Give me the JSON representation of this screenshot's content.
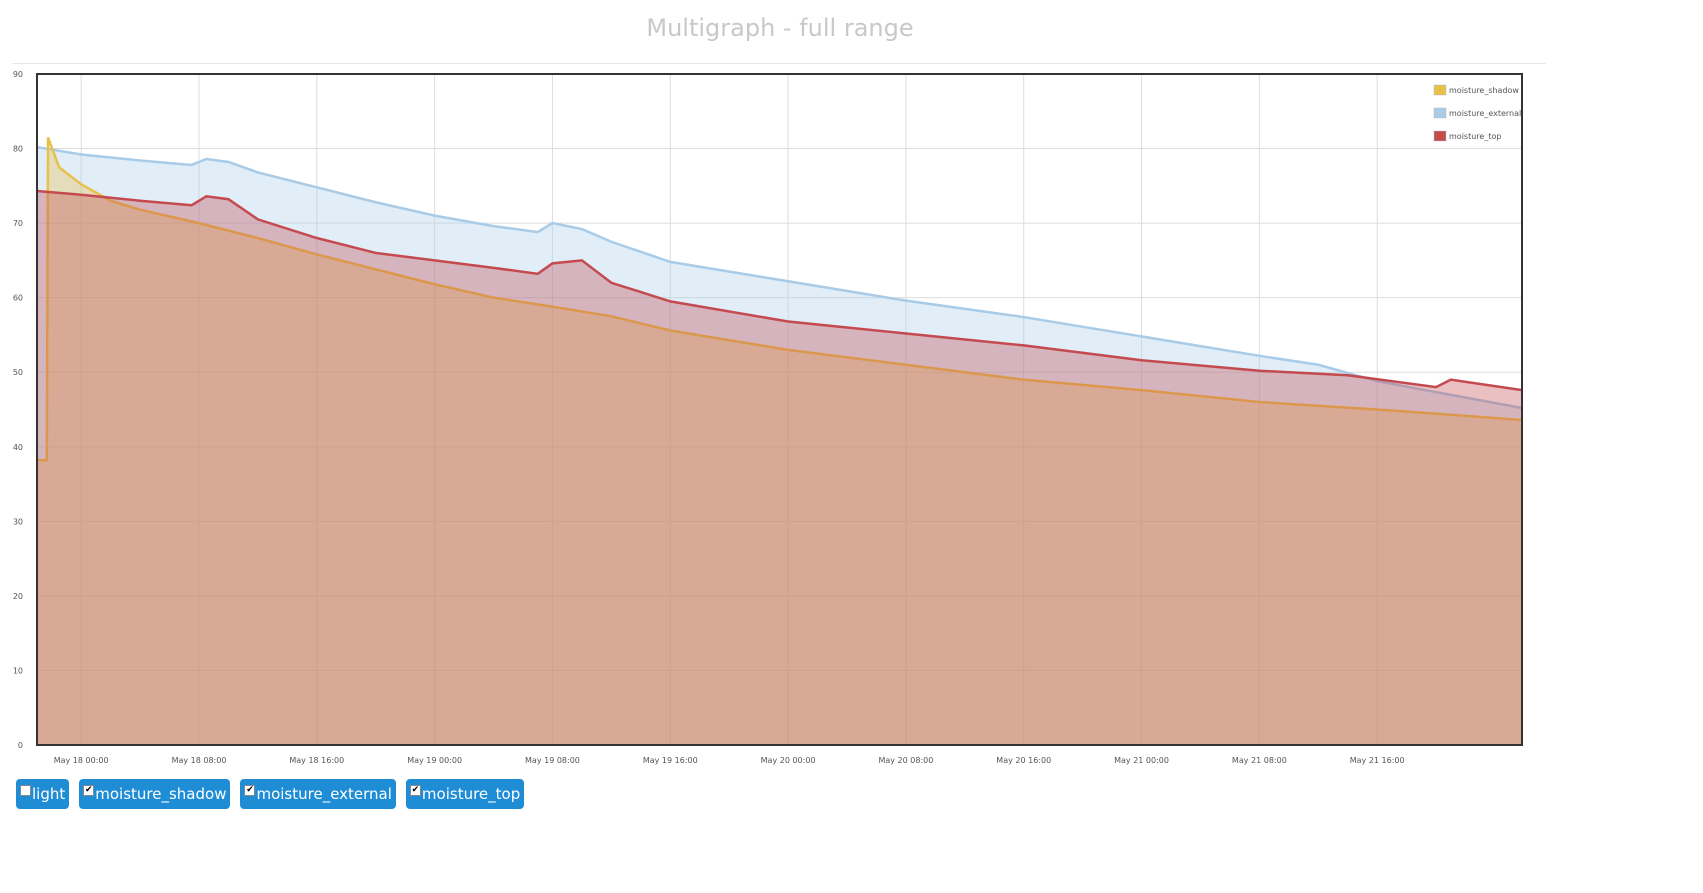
{
  "title": "Multigraph - full range",
  "chart_data": {
    "type": "area",
    "title": "Multigraph - full range",
    "xlabel": "",
    "ylabel": "",
    "ylim": [
      0,
      90
    ],
    "yticks": [
      0,
      10,
      20,
      30,
      40,
      50,
      60,
      70,
      80,
      90
    ],
    "xlim": [
      "2018-05-17 21:00",
      "2018-05-22 01:50"
    ],
    "xticks": [
      "May 18 00:00",
      "May 18 08:00",
      "May 18 16:00",
      "May 19 00:00",
      "May 19 08:00",
      "May 19 16:00",
      "May 20 00:00",
      "May 20 08:00",
      "May 20 16:00",
      "May 21 00:00",
      "May 21 08:00",
      "May 21 16:00"
    ],
    "grid": true,
    "legend": "top-right",
    "series": [
      {
        "name": "moisture_shadow",
        "color": "#e8c14a",
        "points": [
          [
            "2018-05-17 21:00",
            38.2
          ],
          [
            "2018-05-17 21:40",
            38.2
          ],
          [
            "2018-05-17 21:45",
            81.5
          ],
          [
            "2018-05-17 22:30",
            77.5
          ],
          [
            "2018-05-18 00:00",
            75.2
          ],
          [
            "2018-05-18 02:00",
            73.0
          ],
          [
            "2018-05-18 04:00",
            71.8
          ],
          [
            "2018-05-18 08:00",
            70.0
          ],
          [
            "2018-05-18 12:00",
            68.0
          ],
          [
            "2018-05-18 16:00",
            65.8
          ],
          [
            "2018-05-18 20:00",
            63.8
          ],
          [
            "2018-05-19 00:00",
            61.8
          ],
          [
            "2018-05-19 04:00",
            60.0
          ],
          [
            "2018-05-19 08:00",
            58.8
          ],
          [
            "2018-05-19 12:00",
            57.5
          ],
          [
            "2018-05-19 16:00",
            55.6
          ],
          [
            "2018-05-20 00:00",
            53.0
          ],
          [
            "2018-05-20 08:00",
            51.0
          ],
          [
            "2018-05-20 16:00",
            49.0
          ],
          [
            "2018-05-21 00:00",
            47.6
          ],
          [
            "2018-05-21 08:00",
            46.0
          ],
          [
            "2018-05-21 16:00",
            45.0
          ],
          [
            "2018-05-22 01:50",
            43.6
          ]
        ]
      },
      {
        "name": "moisture_external",
        "color": "#a8cbe8",
        "points": [
          [
            "2018-05-17 21:00",
            80.2
          ],
          [
            "2018-05-18 00:00",
            79.2
          ],
          [
            "2018-05-18 04:00",
            78.4
          ],
          [
            "2018-05-18 07:30",
            77.8
          ],
          [
            "2018-05-18 08:30",
            78.6
          ],
          [
            "2018-05-18 10:00",
            78.2
          ],
          [
            "2018-05-18 12:00",
            76.8
          ],
          [
            "2018-05-18 16:00",
            74.8
          ],
          [
            "2018-05-18 20:00",
            72.8
          ],
          [
            "2018-05-19 00:00",
            71.0
          ],
          [
            "2018-05-19 04:00",
            69.6
          ],
          [
            "2018-05-19 07:00",
            68.8
          ],
          [
            "2018-05-19 08:00",
            70.0
          ],
          [
            "2018-05-19 10:00",
            69.2
          ],
          [
            "2018-05-19 12:00",
            67.5
          ],
          [
            "2018-05-19 16:00",
            64.8
          ],
          [
            "2018-05-20 00:00",
            62.2
          ],
          [
            "2018-05-20 08:00",
            59.6
          ],
          [
            "2018-05-20 16:00",
            57.4
          ],
          [
            "2018-05-21 00:00",
            54.8
          ],
          [
            "2018-05-21 08:00",
            52.2
          ],
          [
            "2018-05-21 12:00",
            51.0
          ],
          [
            "2018-05-21 16:00",
            48.8
          ],
          [
            "2018-05-22 01:50",
            45.2
          ]
        ]
      },
      {
        "name": "moisture_top",
        "color": "#c44a4f",
        "points": [
          [
            "2018-05-17 21:00",
            74.3
          ],
          [
            "2018-05-18 00:00",
            73.8
          ],
          [
            "2018-05-18 04:00",
            73.0
          ],
          [
            "2018-05-18 07:30",
            72.4
          ],
          [
            "2018-05-18 08:30",
            73.6
          ],
          [
            "2018-05-18 10:00",
            73.2
          ],
          [
            "2018-05-18 12:00",
            70.5
          ],
          [
            "2018-05-18 16:00",
            68.0
          ],
          [
            "2018-05-18 20:00",
            66.0
          ],
          [
            "2018-05-19 00:00",
            65.0
          ],
          [
            "2018-05-19 04:00",
            64.0
          ],
          [
            "2018-05-19 07:00",
            63.2
          ],
          [
            "2018-05-19 08:00",
            64.6
          ],
          [
            "2018-05-19 10:00",
            65.0
          ],
          [
            "2018-05-19 12:00",
            62.0
          ],
          [
            "2018-05-19 16:00",
            59.5
          ],
          [
            "2018-05-20 00:00",
            56.8
          ],
          [
            "2018-05-20 08:00",
            55.2
          ],
          [
            "2018-05-20 16:00",
            53.6
          ],
          [
            "2018-05-21 00:00",
            51.6
          ],
          [
            "2018-05-21 08:00",
            50.2
          ],
          [
            "2018-05-21 14:00",
            49.6
          ],
          [
            "2018-05-21 20:00",
            48.0
          ],
          [
            "2018-05-21 21:00",
            49.0
          ],
          [
            "2018-05-22 01:50",
            47.6
          ]
        ]
      }
    ]
  },
  "toggles": [
    {
      "label": "light",
      "checked": false
    },
    {
      "label": "moisture_shadow",
      "checked": true
    },
    {
      "label": "moisture_external",
      "checked": true
    },
    {
      "label": "moisture_top",
      "checked": true
    }
  ]
}
